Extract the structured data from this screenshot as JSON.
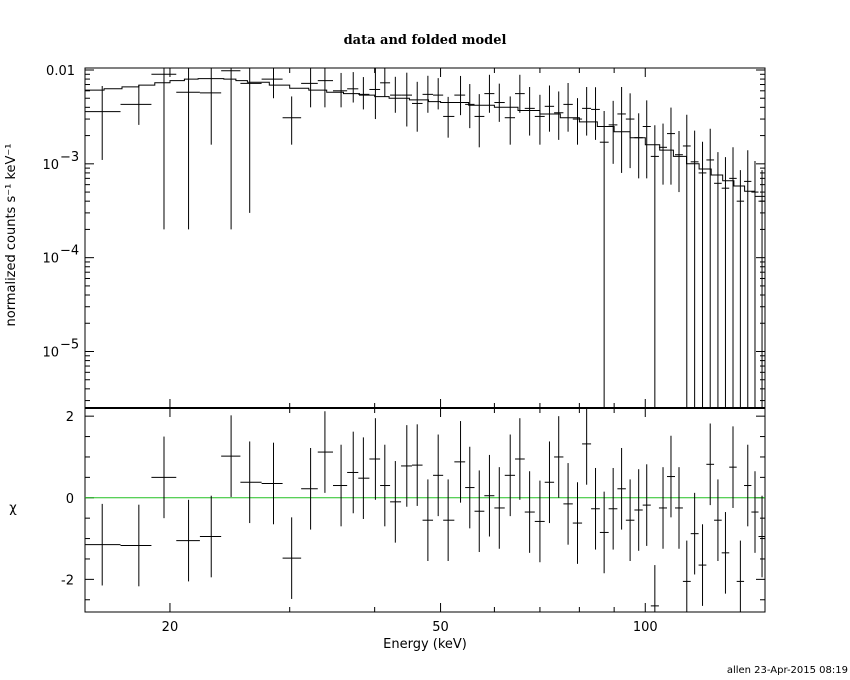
{
  "chart_data": [
    {
      "type": "scatter",
      "title": "data and folded model",
      "xlabel": "Energy (keV)",
      "ylabel": "normalized counts s⁻¹ keV⁻¹",
      "xscale": "log",
      "yscale": "log",
      "xlim": [
        15,
        150
      ],
      "ylim": [
        2.5e-06,
        0.0105
      ],
      "x_ticks": [
        20,
        50,
        100
      ],
      "y_ticks": [
        {
          "value": 0.01,
          "label": "0.01"
        },
        {
          "value": 0.001,
          "base": "10",
          "exp": "−3"
        },
        {
          "value": 0.0001,
          "base": "10",
          "exp": "−4"
        },
        {
          "value": 1e-05,
          "base": "10",
          "exp": "−5"
        }
      ],
      "series": [
        {
          "points": [
            [
              15.9,
              0.0036,
              0.0011
            ],
            [
              18.0,
              0.0043,
              0.0026
            ],
            [
              19.6,
              0.009,
              0.0002
            ],
            [
              21.3,
              0.0058,
              0.0002
            ],
            [
              23.0,
              0.0057,
              0.0016
            ],
            [
              24.6,
              0.0098,
              0.0002
            ],
            [
              26.2,
              0.0072,
              0.0003
            ],
            [
              28.4,
              0.008,
              0.005
            ],
            [
              30.2,
              0.0031,
              0.0016
            ],
            [
              32.2,
              0.0072,
              0.004
            ],
            [
              33.8,
              0.0077,
              0.004
            ],
            [
              35.7,
              0.006,
              0.004
            ],
            [
              37.2,
              0.0063,
              0.0045
            ],
            [
              38.5,
              0.0055,
              0.0038
            ],
            [
              40.1,
              0.0062,
              0.003
            ],
            [
              41.4,
              0.0073,
              0.0052
            ],
            [
              42.9,
              0.0054,
              0.0035
            ],
            [
              44.6,
              0.0054,
              0.0025
            ],
            [
              46.2,
              0.0044,
              0.0022
            ],
            [
              47.9,
              0.0055,
              0.0035
            ],
            [
              49.6,
              0.0054,
              0.0038
            ],
            [
              51.3,
              0.0032,
              0.0019
            ],
            [
              53.5,
              0.0054,
              0.0033
            ],
            [
              55.2,
              0.0043,
              0.0024
            ],
            [
              57.0,
              0.0032,
              0.0015
            ],
            [
              59.0,
              0.0056,
              0.0035
            ],
            [
              61.0,
              0.0045,
              0.0028
            ],
            [
              63.3,
              0.0031,
              0.0016
            ],
            [
              65.4,
              0.0056,
              0.0035
            ],
            [
              67.6,
              0.0039,
              0.002
            ],
            [
              70.0,
              0.0032,
              0.0016
            ],
            [
              72.3,
              0.0041,
              0.0022
            ],
            [
              74.6,
              0.0035,
              0.0018
            ],
            [
              77.0,
              0.0043,
              0.0022
            ],
            [
              79.5,
              0.003,
              0.0016
            ],
            [
              82.0,
              0.0039,
              0.002
            ],
            [
              84.5,
              0.0038,
              0.0018
            ],
            [
              87.0,
              0.0017,
              2.5e-06
            ],
            [
              89.7,
              0.0026,
              0.001
            ],
            [
              92.3,
              0.0034,
              0.0008
            ],
            [
              95.0,
              0.003,
              0.0009
            ],
            [
              97.8,
              0.0019,
              0.0007
            ],
            [
              100.5,
              0.0025,
              0.0007
            ],
            [
              103.3,
              0.0012,
              2.5e-06
            ],
            [
              106.2,
              0.0015,
              0.0006
            ],
            [
              109.1,
              0.0021,
              0.0006
            ],
            [
              112.1,
              0.00125,
              0.0005
            ],
            [
              115.1,
              0.00155,
              2.5e-06
            ],
            [
              118.2,
              0.00105,
              2.5e-06
            ],
            [
              121.4,
              0.0008,
              2.5e-06
            ],
            [
              124.6,
              0.0011,
              2.5e-06
            ],
            [
              127.9,
              0.00062,
              2.5e-06
            ],
            [
              131.2,
              0.00055,
              2.5e-06
            ],
            [
              134.6,
              0.0007,
              2.5e-06
            ],
            [
              138.0,
              0.0004,
              2.5e-06
            ],
            [
              141.5,
              0.00065,
              2.5e-06
            ],
            [
              145.0,
              0.0005,
              2.5e-06
            ],
            [
              148.5,
              0.0004,
              2.5e-06
            ]
          ]
        }
      ],
      "model": [
        [
          15,
          0.0061
        ],
        [
          16,
          0.0063
        ],
        [
          17,
          0.0066
        ],
        [
          18,
          0.0069
        ],
        [
          19,
          0.0073
        ],
        [
          20,
          0.0077
        ],
        [
          21,
          0.008
        ],
        [
          22,
          0.0081
        ],
        [
          23,
          0.0081
        ],
        [
          24,
          0.008
        ],
        [
          25,
          0.0077
        ],
        [
          26,
          0.0074
        ],
        [
          28,
          0.0069
        ],
        [
          30,
          0.0064
        ],
        [
          32,
          0.0061
        ],
        [
          34,
          0.0058
        ],
        [
          36,
          0.0056
        ],
        [
          38,
          0.0054
        ],
        [
          40,
          0.0052
        ],
        [
          42,
          0.005
        ],
        [
          45,
          0.0048
        ],
        [
          48,
          0.0046
        ],
        [
          50,
          0.0045
        ],
        [
          55,
          0.0042
        ],
        [
          60,
          0.004
        ],
        [
          65,
          0.0037
        ],
        [
          70,
          0.0034
        ],
        [
          75,
          0.0031
        ],
        [
          80,
          0.0028
        ],
        [
          85,
          0.0025
        ],
        [
          90,
          0.0022
        ],
        [
          95,
          0.0019
        ],
        [
          100,
          0.0016
        ],
        [
          105,
          0.0014
        ],
        [
          110,
          0.0012
        ],
        [
          115,
          0.001
        ],
        [
          120,
          0.00088
        ],
        [
          125,
          0.00076
        ],
        [
          130,
          0.00066
        ],
        [
          135,
          0.00058
        ],
        [
          140,
          0.00051
        ],
        [
          145,
          0.00045
        ],
        [
          150,
          0.0004
        ]
      ]
    },
    {
      "type": "scatter",
      "xlabel": "Energy (keV)",
      "ylabel": "χ",
      "xscale": "log",
      "ylim": [
        -2.8,
        2.2
      ],
      "y_ticks": [
        -2,
        0,
        2
      ],
      "reference_line": {
        "y": 0,
        "color": "#22c022"
      },
      "residuals": [
        [
          15.9,
          -1.15,
          1.0
        ],
        [
          18.0,
          -1.17,
          1.0
        ],
        [
          19.6,
          0.5,
          1.0
        ],
        [
          21.3,
          -1.05,
          1.0
        ],
        [
          23.0,
          -0.95,
          1.0
        ],
        [
          24.6,
          1.02,
          1.0
        ],
        [
          26.2,
          0.38,
          1.0
        ],
        [
          28.4,
          0.35,
          1.0
        ],
        [
          30.2,
          -1.48,
          1.0
        ],
        [
          32.2,
          0.22,
          1.0
        ],
        [
          33.8,
          1.12,
          1.0
        ],
        [
          35.7,
          0.3,
          1.0
        ],
        [
          37.2,
          0.62,
          1.0
        ],
        [
          38.5,
          0.48,
          1.0
        ],
        [
          40.1,
          0.95,
          1.0
        ],
        [
          41.4,
          0.3,
          1.0
        ],
        [
          42.9,
          -0.1,
          1.0
        ],
        [
          44.6,
          0.78,
          1.0
        ],
        [
          46.2,
          0.8,
          1.0
        ],
        [
          47.9,
          -0.55,
          1.0
        ],
        [
          49.6,
          0.55,
          1.0
        ],
        [
          51.3,
          -0.55,
          1.0
        ],
        [
          53.5,
          0.88,
          1.0
        ],
        [
          55.2,
          0.25,
          1.0
        ],
        [
          57.0,
          -0.33,
          1.0
        ],
        [
          59.0,
          0.05,
          1.0
        ],
        [
          61.0,
          -0.25,
          1.0
        ],
        [
          63.3,
          0.55,
          1.0
        ],
        [
          65.4,
          0.95,
          1.0
        ],
        [
          67.6,
          -0.35,
          1.0
        ],
        [
          70.0,
          -0.58,
          1.0
        ],
        [
          72.3,
          0.38,
          1.0
        ],
        [
          74.6,
          1.0,
          1.0
        ],
        [
          77.0,
          -0.15,
          1.0
        ],
        [
          79.5,
          -0.62,
          1.0
        ],
        [
          82.0,
          1.32,
          1.0
        ],
        [
          84.5,
          -0.27,
          1.0
        ],
        [
          87.0,
          -0.85,
          1.0
        ],
        [
          89.7,
          -0.27,
          1.0
        ],
        [
          92.3,
          0.22,
          1.0
        ],
        [
          95.0,
          -0.55,
          1.0
        ],
        [
          97.8,
          -0.3,
          1.0
        ],
        [
          100.5,
          -0.18,
          1.0
        ],
        [
          103.3,
          -2.65,
          1.0
        ],
        [
          106.2,
          -0.25,
          1.0
        ],
        [
          109.1,
          0.52,
          1.0
        ],
        [
          112.1,
          -0.25,
          1.0
        ],
        [
          115.1,
          -2.05,
          1.0
        ],
        [
          118.2,
          -0.88,
          1.0
        ],
        [
          121.4,
          -1.65,
          1.0
        ],
        [
          124.6,
          0.82,
          1.0
        ],
        [
          127.9,
          -0.55,
          1.0
        ],
        [
          131.2,
          -1.35,
          1.0
        ],
        [
          134.6,
          0.75,
          1.0
        ],
        [
          138.0,
          -2.05,
          1.0
        ],
        [
          141.5,
          0.3,
          1.0
        ],
        [
          145.0,
          -0.35,
          1.0
        ],
        [
          148.5,
          -0.95,
          1.0
        ]
      ]
    }
  ],
  "footer": "allen 23-Apr-2015 08:19"
}
